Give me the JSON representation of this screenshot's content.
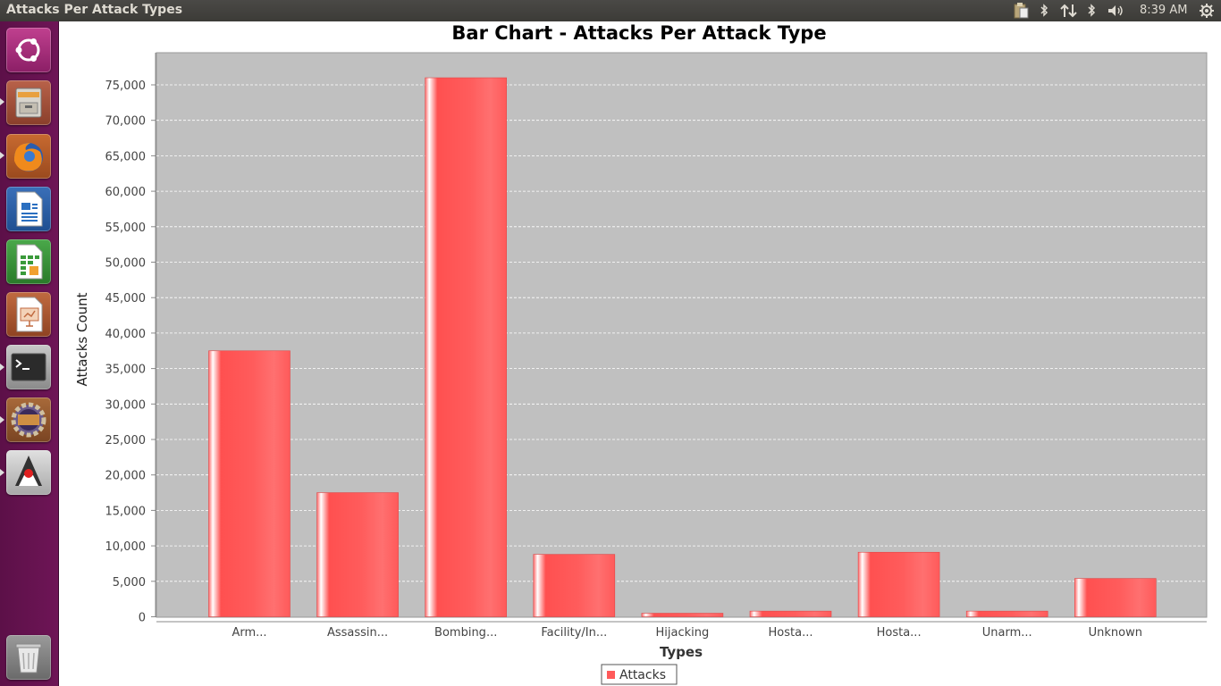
{
  "window": {
    "title": "Attacks Per Attack Types"
  },
  "tray": {
    "clock": "8:39 AM",
    "icons": [
      "clipboard-icon",
      "bluetooth-icon",
      "network-icon",
      "bluetooth-icon",
      "volume-icon",
      "power-gear-icon"
    ]
  },
  "launcher": {
    "items": [
      "ubuntu-dash-icon",
      "files-icon",
      "firefox-icon",
      "writer-icon",
      "calc-icon",
      "impress-icon",
      "terminal-icon",
      "eclipse-java-ee-icon",
      "java-duke-icon",
      "trash-icon"
    ]
  },
  "chart_data": {
    "type": "bar",
    "title": "Bar Chart - Attacks Per Attack Type",
    "xlabel": "Types",
    "ylabel": "Attacks Count",
    "categories": [
      "Arm...",
      "Assassin...",
      "Bombing...",
      "Facility/In...",
      "Hijacking",
      "Hosta...",
      "Hosta...",
      "Unarm...",
      "Unknown"
    ],
    "series": [
      {
        "name": "Attacks",
        "values": [
          37500,
          17500,
          76000,
          8800,
          500,
          800,
          9100,
          800,
          5400
        ]
      }
    ],
    "ylim": [
      0,
      78000
    ],
    "yticks": [
      0,
      5000,
      10000,
      15000,
      20000,
      25000,
      30000,
      35000,
      40000,
      45000,
      50000,
      55000,
      60000,
      65000,
      70000,
      75000
    ],
    "ytick_labels": [
      "0",
      "5,000",
      "10,000",
      "15,000",
      "20,000",
      "25,000",
      "30,000",
      "35,000",
      "40,000",
      "45,000",
      "50,000",
      "55,000",
      "60,000",
      "65,000",
      "70,000",
      "75,000"
    ],
    "grid": true,
    "legend": "bottom-center",
    "colors": {
      "bar": "#ff5a5a",
      "plot_bg": "#c0c0c0",
      "gridline": "#ffffff"
    }
  }
}
